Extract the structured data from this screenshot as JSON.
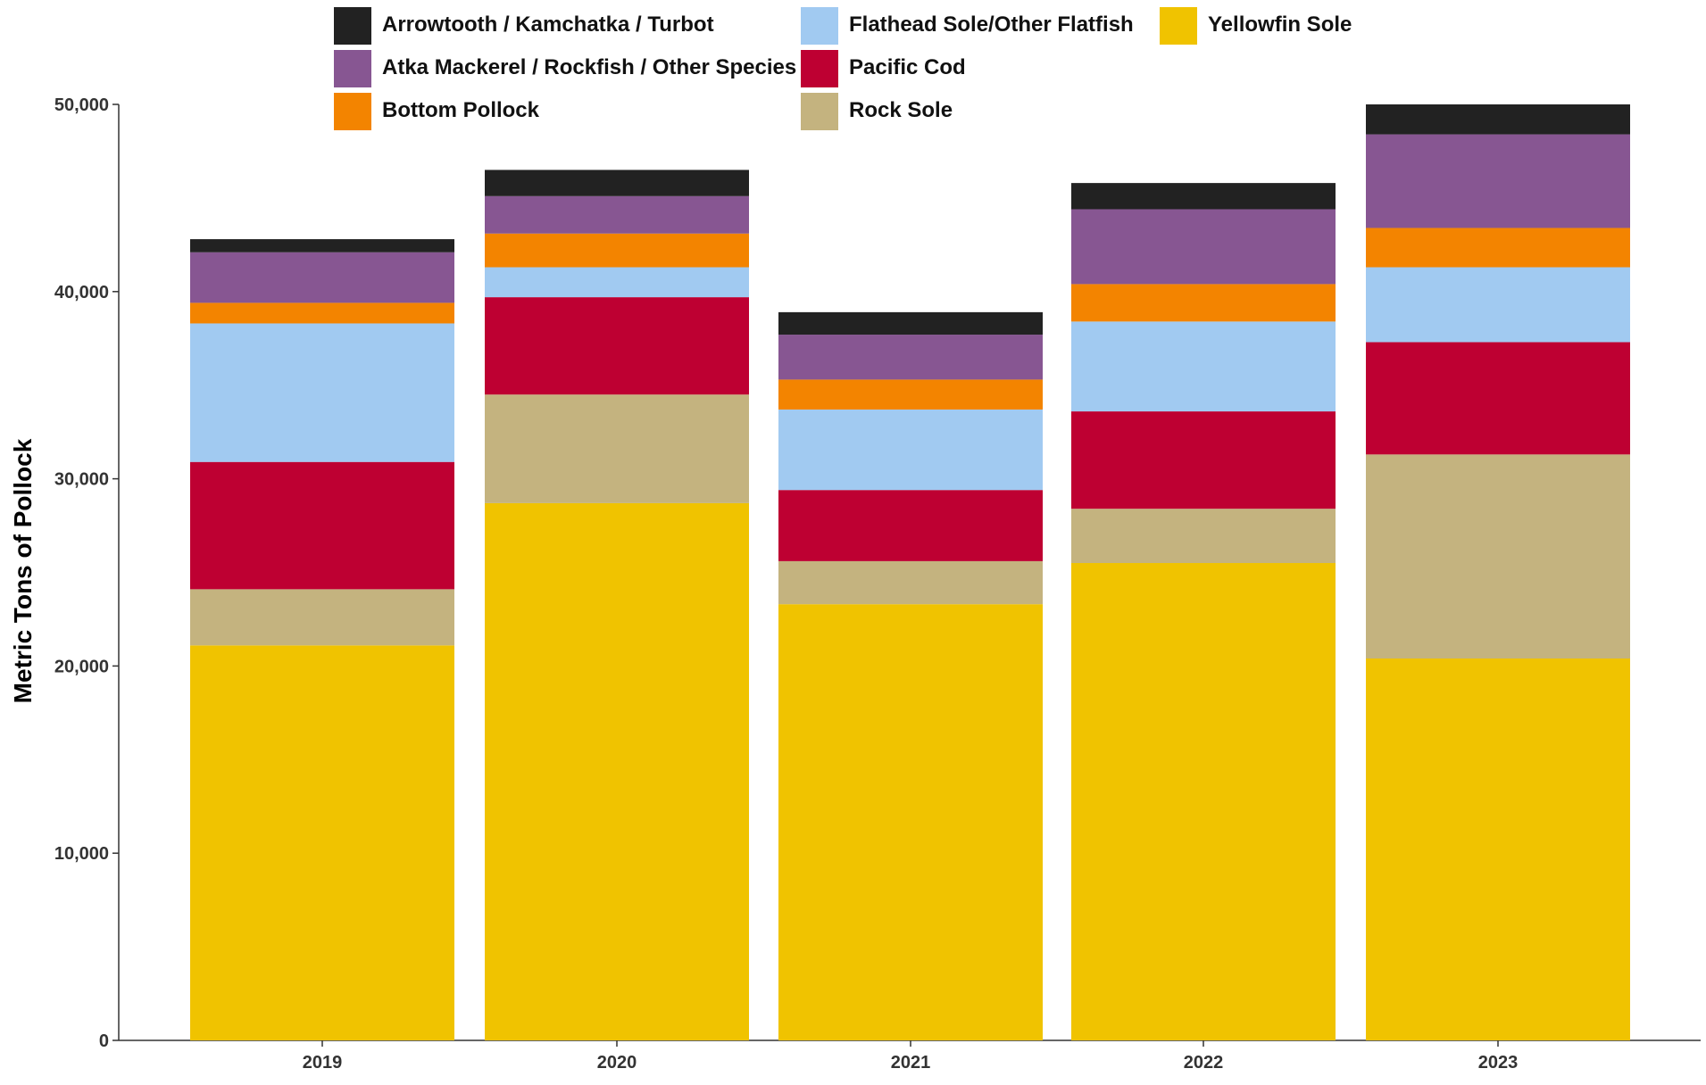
{
  "chart_data": {
    "type": "bar",
    "stacked": true,
    "title": "",
    "xlabel": "",
    "ylabel": "Metric Tons of Pollock",
    "ylim": [
      0,
      50000
    ],
    "y_ticks": [
      0,
      10000,
      20000,
      30000,
      40000,
      50000
    ],
    "y_tick_labels": [
      "0",
      "10,000",
      "20,000",
      "30,000",
      "40,000",
      "50,000"
    ],
    "grid": false,
    "legend_position": "top",
    "categories": [
      "2019",
      "2020",
      "2021",
      "2022",
      "2023"
    ],
    "series": [
      {
        "name": "Yellowfin Sole",
        "color": "#F0C300",
        "values": [
          21100,
          28700,
          23300,
          25500,
          20400
        ]
      },
      {
        "name": "Rock Sole",
        "color": "#C4B37F",
        "values": [
          3000,
          5800,
          2300,
          2900,
          10900
        ]
      },
      {
        "name": "Pacific Cod",
        "color": "#BE0032",
        "values": [
          6800,
          5200,
          3800,
          5200,
          6000
        ]
      },
      {
        "name": "Flathead Sole/Other Flatfish",
        "color": "#A1CAF1",
        "values": [
          7400,
          1600,
          4300,
          4800,
          4000
        ]
      },
      {
        "name": "Bottom Pollock",
        "color": "#F38400",
        "values": [
          1100,
          1800,
          1600,
          2000,
          2100
        ]
      },
      {
        "name": "Atka Mackerel / Rockfish / Other Species",
        "color": "#875692",
        "values": [
          2700,
          2000,
          2400,
          4000,
          5000
        ]
      },
      {
        "name": "Arrowtooth / Kamchatka / Turbot",
        "color": "#222222",
        "values": [
          700,
          1400,
          1200,
          1400,
          1600
        ]
      }
    ],
    "legend_order": [
      "Arrowtooth / Kamchatka / Turbot",
      "Atka Mackerel / Rockfish / Other Species",
      "Bottom Pollock",
      "Flathead Sole/Other Flatfish",
      "Pacific Cod",
      "Rock Sole",
      "Yellowfin Sole"
    ]
  }
}
